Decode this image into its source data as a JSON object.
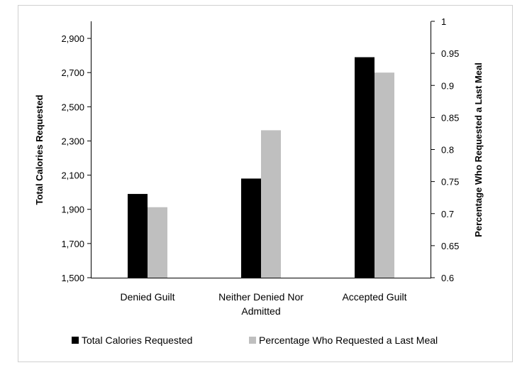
{
  "chart_data": {
    "type": "bar",
    "categories": [
      "Denied Guilt",
      "Neither Denied Nor Admitted",
      "Accepted Guilt"
    ],
    "category_lines": [
      [
        "Denied Guilt"
      ],
      [
        "Neither Denied Nor",
        "Admitted"
      ],
      [
        "Accepted Guilt"
      ]
    ],
    "series": [
      {
        "name": "Total Calories Requested",
        "axis": "left",
        "color": "#000000",
        "values": [
          1990,
          2080,
          2790
        ]
      },
      {
        "name": "Percentage Who Requested a Last Meal",
        "axis": "right",
        "color": "#bfbfbf",
        "values": [
          0.71,
          0.83,
          0.92
        ]
      }
    ],
    "y_left": {
      "label": "Total Calories Requested",
      "range": [
        1500,
        3000
      ],
      "ticks": [
        1500,
        1700,
        1900,
        2100,
        2300,
        2500,
        2700,
        2900
      ],
      "tick_labels": [
        "1,500",
        "1,700",
        "1,900",
        "2,100",
        "2,300",
        "2,500",
        "2,700",
        "2,900"
      ]
    },
    "y_right": {
      "label": "Percentage Who Requested a Last Meal",
      "range": [
        0.6,
        1.0
      ],
      "ticks": [
        0.6,
        0.65,
        0.7,
        0.75,
        0.8,
        0.85,
        0.9,
        0.95,
        1.0
      ],
      "tick_labels": [
        "0.6",
        "0.65",
        "0.7",
        "0.75",
        "0.8",
        "0.85",
        "0.9",
        "0.95",
        "1"
      ]
    },
    "legend_position": "bottom",
    "grid": false
  }
}
